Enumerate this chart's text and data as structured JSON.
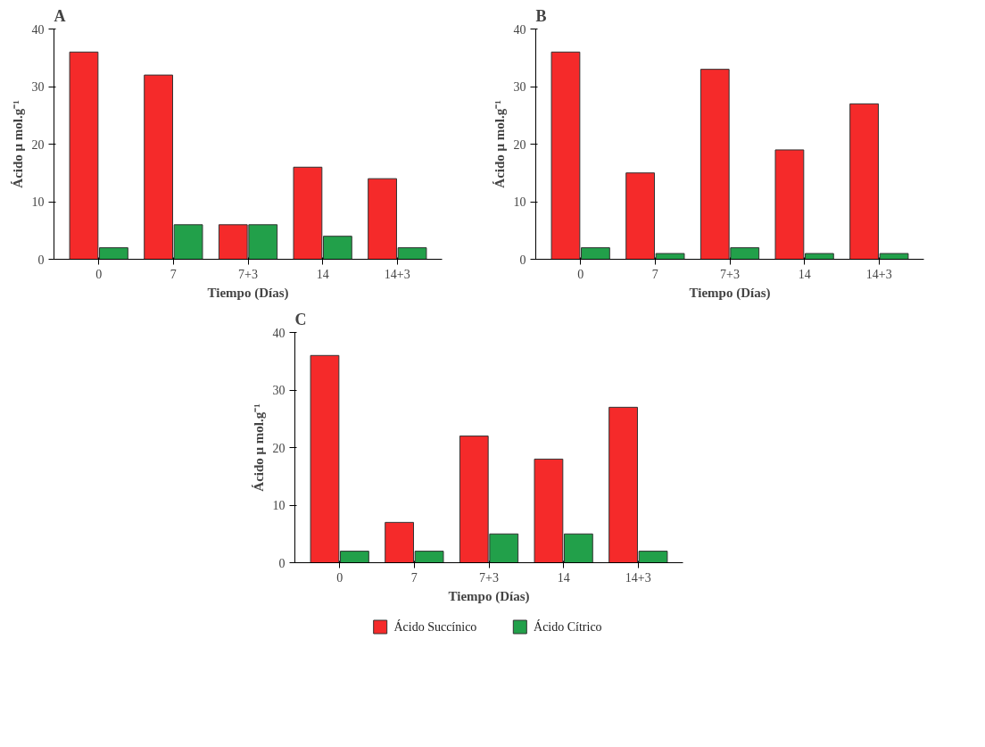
{
  "chart_data": [
    {
      "type": "bar",
      "title": "A",
      "xlabel": "Tiempo (Días)",
      "ylabel": "Ácido μ mol.g⁻¹",
      "categories": [
        "0",
        "7",
        "7+3",
        "14",
        "14+3"
      ],
      "ylim": [
        0,
        40
      ],
      "yticks": [
        0,
        10,
        20,
        30,
        40
      ],
      "grid": false,
      "legend": false,
      "series": [
        {
          "color": "#f52a2a",
          "values": [
            36,
            32,
            6,
            16,
            14
          ]
        },
        {
          "color": "#22a04a",
          "values": [
            2,
            6,
            6,
            4,
            2
          ]
        }
      ]
    },
    {
      "type": "bar",
      "title": "B",
      "xlabel": "Tiempo (Días)",
      "ylabel": "Ácido μ mol.g⁻¹",
      "categories": [
        "0",
        "7",
        "7+3",
        "14",
        "14+3"
      ],
      "ylim": [
        0,
        40
      ],
      "yticks": [
        0,
        10,
        20,
        30,
        40
      ],
      "grid": false,
      "legend": false,
      "series": [
        {
          "color": "#f52a2a",
          "values": [
            36,
            15,
            33,
            19,
            27
          ]
        },
        {
          "color": "#22a04a",
          "values": [
            2,
            1,
            2,
            1,
            1
          ]
        }
      ]
    },
    {
      "type": "bar",
      "title": "C",
      "xlabel": "Tiempo (Días)",
      "ylabel": "Ácido μ mol.g⁻¹",
      "categories": [
        "0",
        "7",
        "7+3",
        "14",
        "14+3"
      ],
      "ylim": [
        0,
        40
      ],
      "yticks": [
        0,
        10,
        20,
        30,
        40
      ],
      "grid": false,
      "legend": "bottom",
      "series": [
        {
          "name": "Ácido Succínico",
          "color": "#f52a2a",
          "values": [
            36,
            7,
            22,
            18,
            27
          ]
        },
        {
          "name": "Ácido Cítrico",
          "color": "#22a04a",
          "values": [
            2,
            2,
            5,
            5,
            2
          ]
        }
      ]
    }
  ]
}
